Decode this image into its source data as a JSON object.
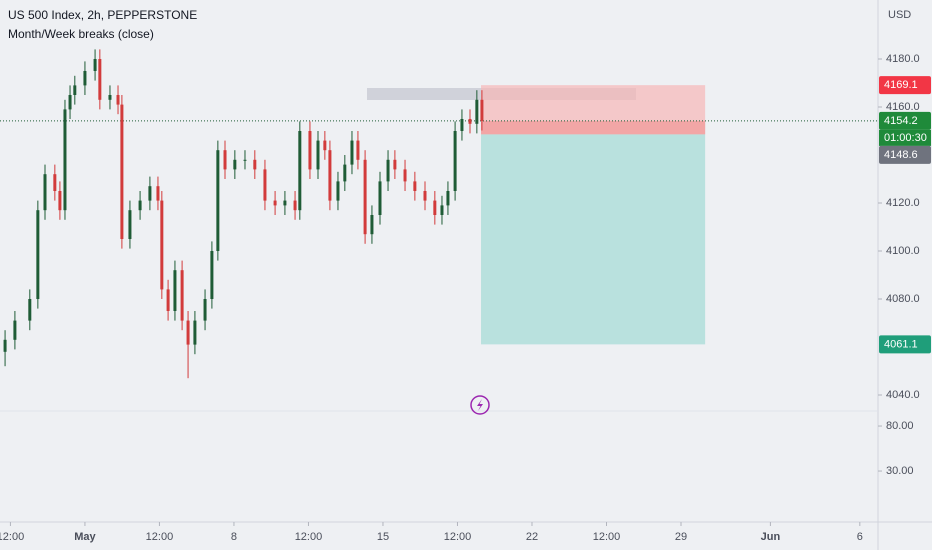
{
  "chart_data": {
    "type": "candlestick",
    "title": "US 500 Index, 2h, PEPPERSTONE",
    "subtitle": "Month/Week breaks (close)",
    "currency": "USD",
    "up_color": "#1f5c36",
    "down_color": "#d23b3b",
    "xlim": [
      -2.85,
      26.61
    ],
    "ylim": [
      4033.75,
      4204.58
    ],
    "xticks": [
      {
        "value": -2.5,
        "label": "12:00"
      },
      {
        "value": 0,
        "label": "May"
      },
      {
        "value": 2.5,
        "label": "12:00"
      },
      {
        "value": 5,
        "label": "8"
      },
      {
        "value": 7.5,
        "label": "12:00"
      },
      {
        "value": 10,
        "label": "15"
      },
      {
        "value": 12.5,
        "label": "12:00"
      },
      {
        "value": 15,
        "label": "22"
      },
      {
        "value": 17.5,
        "label": "12:00"
      },
      {
        "value": 20,
        "label": "29"
      },
      {
        "value": 23,
        "label": "Jun"
      },
      {
        "value": 26,
        "label": "6"
      }
    ],
    "yticks": [
      {
        "value": 4180,
        "label": "4180.0"
      },
      {
        "value": 4160,
        "label": "4160.0"
      },
      {
        "value": 4120,
        "label": "4120.0"
      },
      {
        "value": 4100,
        "label": "4100.0"
      },
      {
        "value": 4080,
        "label": "4080.0"
      },
      {
        "value": 4040,
        "label": "4040.0"
      }
    ],
    "indicator_ylim": [
      -24.4,
      95.6
    ],
    "indicator_ticks": [
      {
        "value": 80,
        "label": "80.00"
      },
      {
        "value": 30,
        "label": "30.00"
      }
    ],
    "x": [
      -2.68,
      -2.35,
      -1.85,
      -1.58,
      -1.34,
      -1.01,
      -0.84,
      -0.67,
      -0.5,
      -0.34,
      0,
      0.34,
      0.5,
      0.84,
      1.11,
      1.24,
      1.51,
      1.85,
      2.18,
      2.45,
      2.58,
      2.79,
      3.02,
      3.26,
      3.46,
      3.69,
      4.03,
      4.26,
      4.46,
      4.7,
      5.03,
      5.37,
      5.7,
      6.04,
      6.38,
      6.71,
      7.05,
      7.21,
      7.55,
      7.82,
      8.05,
      8.22,
      8.49,
      8.72,
      8.96,
      9.16,
      9.4,
      9.63,
      9.9,
      10.17,
      10.4,
      10.74,
      11.07,
      11.41,
      11.74,
      11.98,
      12.18,
      12.42,
      12.65,
      12.92,
      13.15,
      13.32
    ],
    "open": [
      4058,
      4063,
      4071,
      4080,
      4117,
      4132,
      4125,
      4117,
      4159,
      4165,
      4169,
      4175,
      4180,
      4163,
      4165,
      4161,
      4105,
      4117,
      4121,
      4127,
      4121,
      4084,
      4075,
      4092,
      4071,
      4061,
      4071,
      4080,
      4100,
      4142,
      4134,
      4138,
      4138,
      4134,
      4121,
      4119,
      4121,
      4117,
      4150,
      4134,
      4146,
      4142,
      4121,
      4129,
      4136,
      4146,
      4138,
      4107,
      4115,
      4129,
      4138,
      4134,
      4129,
      4125,
      4121,
      4115,
      4119,
      4125,
      4150,
      4155,
      4153,
      4163
    ],
    "high": [
      4067,
      4075,
      4084,
      4121,
      4136,
      4136,
      4129,
      4163,
      4169,
      4173,
      4179,
      4184,
      4184,
      4169,
      4169,
      4165,
      4121,
      4125,
      4131,
      4131,
      4125,
      4088,
      4096,
      4096,
      4075,
      4075,
      4084,
      4104,
      4146,
      4146,
      4142,
      4142,
      4142,
      4138,
      4125,
      4125,
      4125,
      4154,
      4154,
      4150,
      4150,
      4146,
      4133,
      4140,
      4150,
      4150,
      4142,
      4119,
      4133,
      4142,
      4142,
      4138,
      4133,
      4129,
      4125,
      4123,
      4129,
      4154,
      4159,
      4159,
      4167,
      4167
    ],
    "low": [
      4052,
      4059,
      4067,
      4076,
      4113,
      4121,
      4113,
      4113,
      4155,
      4161,
      4165,
      4171,
      4159,
      4159,
      4157,
      4101,
      4101,
      4113,
      4117,
      4117,
      4080,
      4071,
      4071,
      4067,
      4047,
      4057,
      4067,
      4076,
      4096,
      4130,
      4130,
      4134,
      4130,
      4117,
      4115,
      4115,
      4113,
      4113,
      4130,
      4130,
      4138,
      4117,
      4117,
      4125,
      4132,
      4134,
      4103,
      4103,
      4111,
      4125,
      4130,
      4125,
      4121,
      4117,
      4111,
      4111,
      4115,
      4121,
      4146,
      4149,
      4149,
      4150.2
    ],
    "close": [
      4063,
      4071,
      4080,
      4117,
      4132,
      4125,
      4117,
      4159,
      4165,
      4169,
      4175,
      4180,
      4163,
      4165,
      4161,
      4105,
      4117,
      4121,
      4127,
      4121,
      4084,
      4075,
      4092,
      4071,
      4061,
      4071,
      4080,
      4100,
      4142,
      4134,
      4138,
      4138,
      4134,
      4121,
      4119,
      4121,
      4117,
      4150,
      4134,
      4146,
      4142,
      4121,
      4129,
      4136,
      4146,
      4138,
      4107,
      4115,
      4129,
      4138,
      4134,
      4129,
      4125,
      4121,
      4115,
      4119,
      4125,
      4150,
      4155,
      4153,
      4163,
      4154.2
    ],
    "countdown": "01:00:30",
    "position": {
      "x": [
        13.29,
        20.81
      ],
      "entry": 4148.6,
      "stop": 4169.1,
      "target": 4061.1
    }
  }
}
